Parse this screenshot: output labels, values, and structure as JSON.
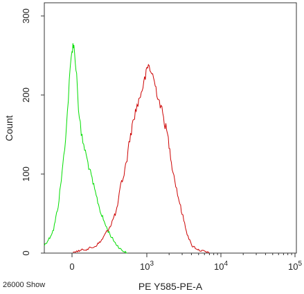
{
  "chart_data": {
    "type": "line",
    "title": "",
    "xlabel": "PE Y585-PE-A",
    "ylabel": "Count",
    "footer_note": "26000 Show",
    "x_scale": "biexponential",
    "x_ticks": [
      {
        "value": 0,
        "label": "0"
      },
      {
        "value": 1000,
        "label": "10",
        "exp": "3"
      },
      {
        "value": 10000,
        "label": "10",
        "exp": "4"
      },
      {
        "value": 100000,
        "label": "10",
        "exp": "5"
      }
    ],
    "y_ticks": [
      {
        "value": 0,
        "label": "0"
      },
      {
        "value": 100,
        "label": "100"
      },
      {
        "value": 200,
        "label": "200"
      },
      {
        "value": 300,
        "label": "300"
      }
    ],
    "ylim": [
      0,
      320
    ],
    "xlim": [
      -300,
      110000
    ],
    "grid": false,
    "series": [
      {
        "color": "#00dd00",
        "points": [
          [
            -300,
            10
          ],
          [
            -250,
            18
          ],
          [
            -200,
            30
          ],
          [
            -150,
            60
          ],
          [
            -100,
            110
          ],
          [
            -60,
            160
          ],
          [
            -30,
            215
          ],
          [
            -10,
            245
          ],
          [
            0,
            255
          ],
          [
            10,
            265
          ],
          [
            20,
            260
          ],
          [
            35,
            245
          ],
          [
            50,
            225
          ],
          [
            70,
            185
          ],
          [
            100,
            150
          ],
          [
            130,
            110
          ],
          [
            160,
            80
          ],
          [
            200,
            50
          ],
          [
            250,
            30
          ],
          [
            300,
            18
          ],
          [
            350,
            10
          ],
          [
            400,
            5
          ],
          [
            450,
            2
          ],
          [
            500,
            0
          ]
        ]
      },
      {
        "color": "#cc0000",
        "points": [
          [
            10,
            0
          ],
          [
            40,
            2
          ],
          [
            80,
            3
          ],
          [
            120,
            5
          ],
          [
            160,
            8
          ],
          [
            200,
            15
          ],
          [
            280,
            35
          ],
          [
            350,
            55
          ],
          [
            400,
            85
          ],
          [
            450,
            100
          ],
          [
            500,
            120
          ],
          [
            550,
            145
          ],
          [
            650,
            175
          ],
          [
            800,
            200
          ],
          [
            900,
            215
          ],
          [
            1050,
            238
          ],
          [
            1200,
            225
          ],
          [
            1400,
            200
          ],
          [
            1600,
            180
          ],
          [
            1900,
            150
          ],
          [
            2200,
            110
          ],
          [
            2600,
            75
          ],
          [
            3000,
            50
          ],
          [
            3500,
            25
          ],
          [
            4000,
            10
          ],
          [
            5000,
            4
          ],
          [
            6000,
            2
          ],
          [
            7000,
            0
          ]
        ]
      }
    ]
  }
}
